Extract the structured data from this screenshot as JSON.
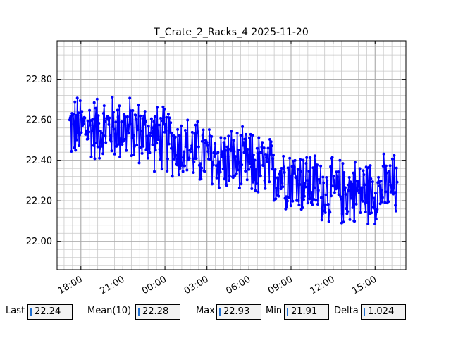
{
  "chart_data": {
    "type": "line",
    "title": "T_Crate_2_Racks_4 2025-11-20",
    "xlabel": "",
    "ylabel": "",
    "x_start_hour": 17.2,
    "x_end_hour": 40.6,
    "xlim_hours": [
      16.3,
      41.2
    ],
    "ylim": [
      21.86,
      22.99
    ],
    "y_ticks": [
      22.0,
      22.2,
      22.4,
      22.6,
      22.8
    ],
    "y_tick_labels": [
      "22.00",
      "22.20",
      "22.40",
      "22.60",
      "22.80"
    ],
    "x_ticks_hours": [
      18,
      21,
      24,
      27,
      30,
      33,
      36,
      39
    ],
    "x_tick_labels": [
      "18:00",
      "21:00",
      "00:00",
      "03:00",
      "06:00",
      "09:00",
      "12:00",
      "15:00"
    ],
    "grid": true,
    "minor_grid": true,
    "series": [
      {
        "color": "#0000ff",
        "marker": "circle",
        "trend_points": [
          {
            "hour": 17.2,
            "value": 22.56
          },
          {
            "hour": 21.0,
            "value": 22.56
          },
          {
            "hour": 24.0,
            "value": 22.5
          },
          {
            "hour": 27.0,
            "value": 22.42
          },
          {
            "hour": 30.0,
            "value": 22.38
          },
          {
            "hour": 33.0,
            "value": 22.32
          },
          {
            "hour": 36.0,
            "value": 22.24
          },
          {
            "hour": 38.5,
            "value": 22.25
          },
          {
            "hour": 40.6,
            "value": 22.27
          }
        ],
        "amplitude": 0.17,
        "sample_interval_minutes": 2.5
      }
    ]
  },
  "stats": {
    "last_label": "Last",
    "last_value": "22.24",
    "mean_label": "Mean(10)",
    "mean_value": "22.28",
    "max_label": "Max",
    "max_value": "22.93",
    "min_label": "Min",
    "min_value": "21.91",
    "delta_label": "Delta",
    "delta_value": "1.024"
  }
}
